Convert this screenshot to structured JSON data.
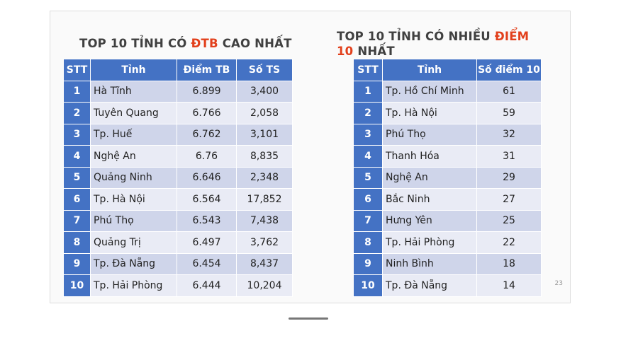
{
  "left": {
    "title": [
      "TOP 10 TỈNH CÓ",
      "ĐTB",
      "CAO NHẤT"
    ],
    "table": {
      "header": [
        "STT",
        "Tỉnh",
        "Điểm TB",
        "Số TS"
      ],
      "rows": [
        [
          "1",
          "Hà Tĩnh",
          "6.899",
          "3,400"
        ],
        [
          "2",
          "Tuyên Quang",
          "6.766",
          "2,058"
        ],
        [
          "3",
          "Tp. Huế",
          "6.762",
          "3,101"
        ],
        [
          "4",
          "Nghệ An",
          "6.76",
          "8,835"
        ],
        [
          "5",
          "Quảng Ninh",
          "6.646",
          "2,348"
        ],
        [
          "6",
          "Tp. Hà Nội",
          "6.564",
          "17,852"
        ],
        [
          "7",
          "Phú Thọ",
          "6.543",
          "7,438"
        ],
        [
          "8",
          "Quảng Trị",
          "6.497",
          "3,762"
        ],
        [
          "9",
          "Tp. Đà Nẵng",
          "6.454",
          "8,437"
        ],
        [
          "10",
          "Tp. Hải Phòng",
          "6.444",
          "10,204"
        ]
      ]
    }
  },
  "right": {
    "title": [
      "TOP 10 TỈNH CÓ NHIỀU",
      "ĐIỂM 10",
      "NHẤT"
    ],
    "table": {
      "header": [
        "STT",
        "Tỉnh",
        "Số điểm 10"
      ],
      "rows": [
        [
          "1",
          "Tp. Hồ Chí Minh",
          "61"
        ],
        [
          "2",
          "Tp. Hà Nội",
          "59"
        ],
        [
          "3",
          "Phú Thọ",
          "32"
        ],
        [
          "4",
          "Thanh Hóa",
          "31"
        ],
        [
          "5",
          "Nghệ An",
          "29"
        ],
        [
          "6",
          "Bắc Ninh",
          "27"
        ],
        [
          "7",
          "Hưng Yên",
          "25"
        ],
        [
          "8",
          "Tp. Hải Phòng",
          "22"
        ],
        [
          "9",
          "Ninh Bình",
          "18"
        ],
        [
          "10",
          "Tp. Đà Nẵng",
          "14"
        ]
      ]
    }
  },
  "page_number": "23"
}
